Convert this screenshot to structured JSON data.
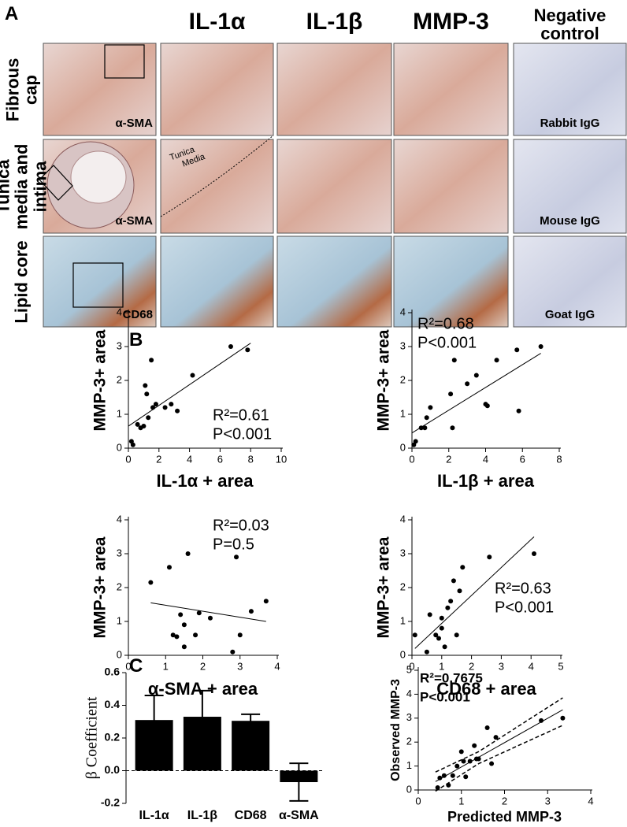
{
  "panel_labels": [
    "A",
    "B",
    "C"
  ],
  "panel_a": {
    "columns": [
      "IL-1α",
      "IL-1β",
      "MMP-3",
      "Negative control"
    ],
    "rows": [
      "Fibrous cap",
      "Tunica media and intima",
      "Lipid core"
    ],
    "image_labels": [
      [
        "α-SMA",
        "Rabbit IgG"
      ],
      [
        "α-SMA",
        "Mouse IgG"
      ],
      [
        "CD68",
        "Goat IgG"
      ]
    ],
    "annotation": "Tunica Media"
  },
  "chart_data": [
    {
      "type": "scatter",
      "x_label": "IL-1α + area",
      "y_label": "MMP-3+ area",
      "color": "#000000",
      "x": [
        0.2,
        0.3,
        0.6,
        0.8,
        1.0,
        1.1,
        1.2,
        1.3,
        1.5,
        1.6,
        1.8,
        2.4,
        2.8,
        3.2,
        4.2,
        6.7,
        7.8
      ],
      "y": [
        0.2,
        0.1,
        0.7,
        0.6,
        0.65,
        1.85,
        1.6,
        0.9,
        2.6,
        1.2,
        1.3,
        1.2,
        1.3,
        1.1,
        2.15,
        3.0,
        2.9
      ],
      "fit_line": {
        "x": [
          0,
          8
        ],
        "y": [
          0.65,
          3.1
        ]
      },
      "xlim": [
        0,
        10
      ],
      "xticks": [
        0,
        2,
        4,
        6,
        8,
        10
      ],
      "ylim": [
        0,
        4
      ],
      "yticks": [
        0,
        1,
        2,
        3,
        4
      ],
      "stats": [
        "R²=0.61",
        "P<0.001"
      ]
    },
    {
      "type": "scatter",
      "x_label": "IL-1β + area",
      "y_label": "MMP-3+ area",
      "color": "#000000",
      "x": [
        0.1,
        0.2,
        0.5,
        0.7,
        0.8,
        1.0,
        2.1,
        2.2,
        2.3,
        3.0,
        3.5,
        4.0,
        4.1,
        4.6,
        5.7,
        5.8,
        7.0
      ],
      "y": [
        0.1,
        0.2,
        0.6,
        0.6,
        0.9,
        1.2,
        1.6,
        0.6,
        2.6,
        1.9,
        2.15,
        1.3,
        1.25,
        2.6,
        2.9,
        1.1,
        3.0
      ],
      "fit_line": {
        "x": [
          0,
          7
        ],
        "y": [
          0.45,
          2.8
        ]
      },
      "xlim": [
        0,
        8
      ],
      "xticks": [
        0,
        2,
        4,
        6,
        8
      ],
      "ylim": [
        0,
        4
      ],
      "yticks": [
        0,
        1,
        2,
        3,
        4
      ],
      "stats": [
        "R²=0.68",
        "P<0.001"
      ]
    },
    {
      "type": "scatter",
      "x_label": "α-SMA + area",
      "y_label": "MMP-3+ area",
      "color": "#000000",
      "x": [
        0.6,
        1.1,
        1.2,
        1.3,
        1.4,
        1.5,
        1.5,
        1.6,
        1.8,
        1.9,
        2.2,
        2.9,
        2.8,
        3.0,
        3.3,
        3.7
      ],
      "y": [
        2.15,
        2.6,
        0.6,
        0.55,
        1.2,
        0.9,
        0.25,
        3.0,
        0.6,
        1.25,
        1.1,
        2.9,
        0.1,
        0.6,
        1.3,
        1.6
      ],
      "fit_line": {
        "x": [
          0.6,
          3.7
        ],
        "y": [
          1.55,
          1.0
        ]
      },
      "xlim": [
        0,
        4
      ],
      "xticks": [
        0,
        1,
        2,
        3,
        4
      ],
      "ylim": [
        0,
        4
      ],
      "yticks": [
        0,
        1,
        2,
        3,
        4
      ],
      "stats": [
        "R²=0.03",
        "P=0.5"
      ]
    },
    {
      "type": "scatter",
      "x_label": "CD68 + area",
      "y_label": "MMP-3+ area",
      "color": "#000000",
      "x": [
        0.1,
        0.5,
        0.6,
        0.8,
        0.9,
        1.0,
        1.0,
        1.1,
        1.2,
        1.3,
        1.4,
        1.5,
        1.6,
        1.7,
        2.6,
        4.1
      ],
      "y": [
        0.6,
        0.1,
        1.2,
        0.6,
        0.5,
        0.8,
        1.1,
        0.25,
        1.4,
        1.6,
        2.2,
        0.6,
        1.9,
        2.6,
        2.9,
        3.0
      ],
      "fit_line": {
        "x": [
          0.1,
          4.1
        ],
        "y": [
          0.2,
          3.5
        ]
      },
      "xlim": [
        0,
        5
      ],
      "xticks": [
        0,
        1,
        2,
        3,
        4,
        5
      ],
      "ylim": [
        0,
        4
      ],
      "yticks": [
        0,
        1,
        2,
        3,
        4
      ],
      "stats": [
        "R²=0.63",
        "P<0.001"
      ]
    },
    {
      "type": "bar",
      "y_label": "β Coefficient",
      "color": "#000000",
      "categories": [
        "IL-1α",
        "IL-1β",
        "CD68",
        "α-SMA"
      ],
      "values": [
        0.31,
        0.33,
        0.305,
        -0.07
      ],
      "errors": [
        0.15,
        0.16,
        0.04,
        0.115
      ],
      "ylim": [
        -0.2,
        0.6
      ],
      "yticks": [
        -0.2,
        {
          "value": 0,
          "label": "0.0"
        },
        0.2,
        0.4,
        0.6
      ]
    },
    {
      "type": "scatter",
      "x_label": "Predicted MMP-3",
      "y_label": "Observed MMP-3",
      "color": "#000000",
      "x": [
        0.45,
        0.5,
        0.6,
        0.7,
        0.8,
        0.9,
        1.0,
        1.05,
        1.1,
        1.2,
        1.3,
        1.35,
        1.4,
        1.6,
        1.7,
        1.8,
        2.85,
        3.35
      ],
      "y": [
        0.1,
        0.5,
        0.6,
        0.2,
        0.6,
        1.0,
        1.6,
        1.2,
        0.55,
        1.2,
        1.85,
        1.3,
        1.3,
        2.6,
        1.1,
        2.2,
        2.9,
        3.0
      ],
      "fit_line": {
        "x": [
          0.4,
          3.35
        ],
        "y": [
          0.35,
          3.35
        ]
      },
      "ci_upper": {
        "x": [
          0.4,
          1.4,
          3.35
        ],
        "y": [
          0.75,
          1.6,
          3.85
        ]
      },
      "ci_lower": {
        "x": [
          0.4,
          1.4,
          3.35
        ],
        "y": [
          -0.05,
          1.1,
          2.7
        ]
      },
      "xlim": [
        0,
        4
      ],
      "xticks": [
        0,
        1,
        2,
        3,
        4
      ],
      "ylim": [
        0,
        5
      ],
      "yticks": [
        0,
        1,
        2,
        3,
        4,
        5
      ],
      "stats": [
        "R²=0.7675",
        "P<0.001"
      ]
    }
  ]
}
